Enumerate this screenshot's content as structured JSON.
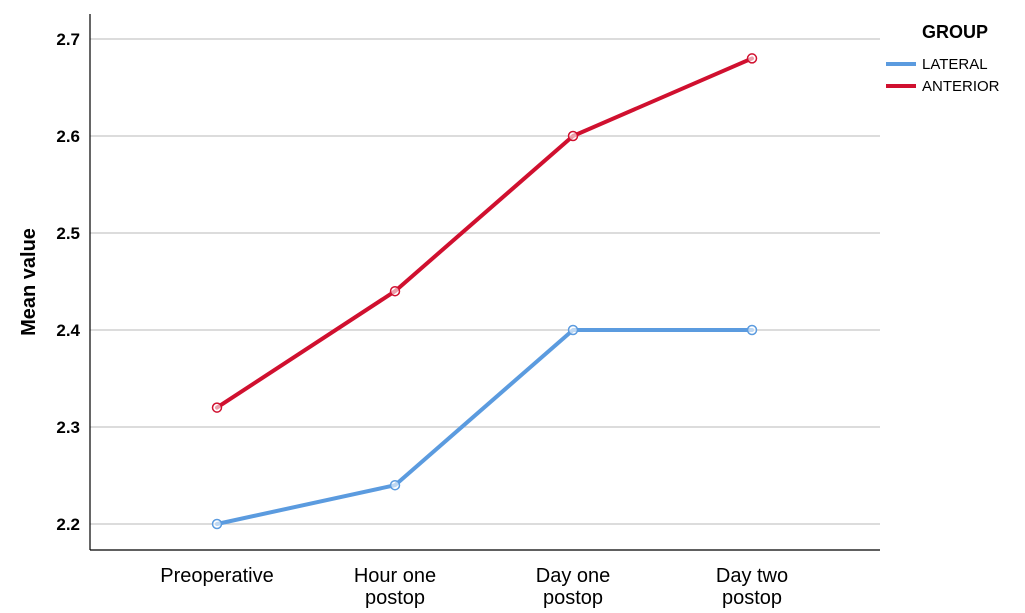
{
  "chart_data": {
    "type": "line",
    "categories": [
      "Preoperative",
      "Hour one postop",
      "Day one postop",
      "Day two postop"
    ],
    "category_lines": [
      [
        "Preoperative"
      ],
      [
        "Hour one",
        "postop"
      ],
      [
        "Day one",
        "postop"
      ],
      [
        "Day two",
        "postop"
      ]
    ],
    "series": [
      {
        "name": "LATERAL",
        "color": "#5b9bdf",
        "values": [
          2.2,
          2.24,
          2.4,
          2.4
        ]
      },
      {
        "name": "ANTERIOR",
        "color": "#d0102f",
        "values": [
          2.32,
          2.44,
          2.6,
          2.68
        ]
      }
    ],
    "xlabel": "",
    "ylabel": "Mean value",
    "ylim": [
      2.2,
      2.7
    ],
    "yticks": [
      2.2,
      2.3,
      2.4,
      2.5,
      2.6,
      2.7
    ],
    "ytick_labels": [
      "2.2",
      "2.3",
      "2.4",
      "2.5",
      "2.6",
      "2.7"
    ],
    "grid": "horizontal",
    "legend": {
      "title": "GROUP",
      "position": "top-right"
    },
    "markers": "open-circle",
    "colors": {
      "gridline": "#c8c8c8",
      "axis": "#000000"
    }
  }
}
